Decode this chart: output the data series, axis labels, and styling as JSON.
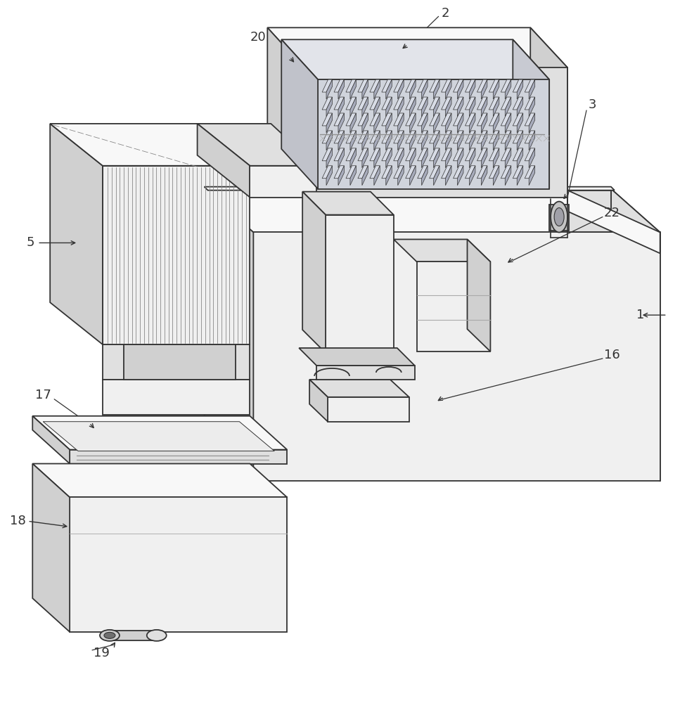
{
  "bg": "#ffffff",
  "lc": "#333333",
  "lw": 1.3,
  "fw": 9.77,
  "fh": 10.0,
  "dpi": 100,
  "fs": 13,
  "fc_white": "#f8f8f8",
  "fc_light": "#f0f0f0",
  "fc_mid": "#e0e0e0",
  "fc_dark": "#d0d0d0",
  "fc_darker": "#c4c4c4",
  "fc_inner": "#e8e8e8",
  "fc_grid": "#c8c8c8"
}
